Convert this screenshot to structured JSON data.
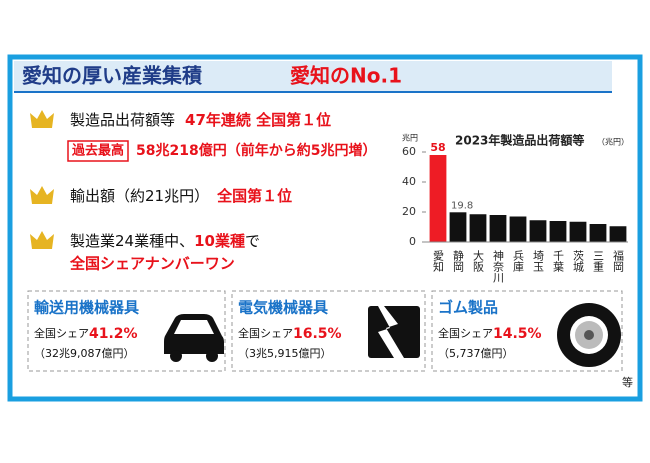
{
  "header": {
    "title": "愛知の厚い産業集積",
    "subtitle": "愛知のNo.1"
  },
  "items": [
    {
      "text": "製造品出荷額等",
      "emphasis": "47年連続 全国第１位"
    },
    {
      "badge": "過去最高",
      "text": "58兆218億円（前年から約5兆円増）"
    },
    {
      "text": "輸出額（約21兆円）",
      "emphasis": "全国第１位"
    },
    {
      "text": "製造業24業種中、",
      "emphasis": "10業種",
      "suffix": "で",
      "line2": "全国シェアナンバーワン"
    }
  ],
  "cards": [
    {
      "title": "輸送用機械器具",
      "share_label": "全国シェア",
      "share": "41.2%",
      "amount": "（32兆9,087億円）"
    },
    {
      "title": "電気機械器具",
      "share_label": "全国シェア",
      "share": "16.5%",
      "amount": "（3兆5,915億円）"
    },
    {
      "title": "ゴム製品",
      "share_label": "全国シェア",
      "share": "14.5%",
      "amount": "（5,737億円）"
    }
  ],
  "footnote": "等",
  "chart_data": {
    "type": "bar",
    "title": "2023年製造品出荷額等",
    "unit": "（兆円）",
    "y_label": "兆円",
    "categories": [
      "愛知",
      "静岡",
      "大阪",
      "神奈川",
      "兵庫",
      "埼玉",
      "千葉",
      "茨城",
      "三重",
      "福岡"
    ],
    "values": [
      58,
      19.8,
      18.5,
      18,
      17,
      14.5,
      14,
      13.5,
      12,
      10.5
    ],
    "value_labels": [
      "58",
      "19.8",
      null,
      null,
      null,
      null,
      null,
      null,
      null,
      null
    ],
    "colors": [
      "#ee1c25",
      "#111111",
      "#111111",
      "#111111",
      "#111111",
      "#111111",
      "#111111",
      "#111111",
      "#111111",
      "#111111"
    ],
    "ylim": [
      0,
      60
    ],
    "yticks": [
      0,
      20,
      40,
      60
    ]
  }
}
